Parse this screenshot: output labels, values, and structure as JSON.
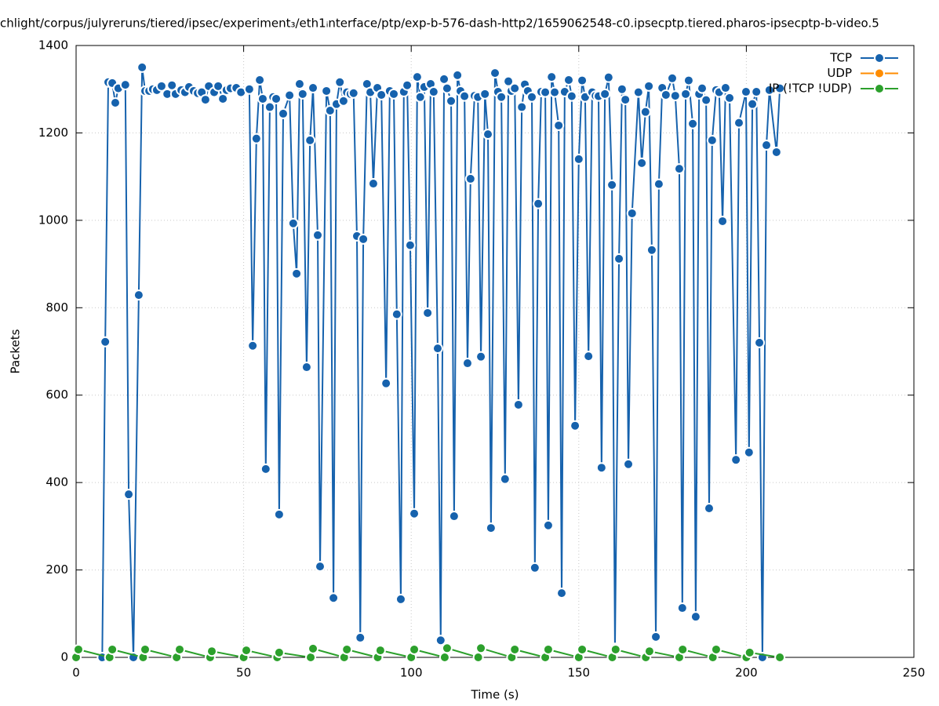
{
  "chart_data": {
    "type": "line",
    "title": "chlight/corpus/julyreruns/tiered/ipsec/experiment₃/eth1ᵢnterface/ptp/exp-b-576-dash-http2/1659062548-c0.ipsecptp.tiered.pharos-ipsecptp-b-video.5",
    "x_label": "Time (s)",
    "y_label": "Packets",
    "xlim": [
      0,
      250
    ],
    "xticks": [
      0,
      50,
      100,
      150,
      200,
      250
    ],
    "ylim": [
      0,
      1400
    ],
    "yticks": [
      0,
      200,
      400,
      600,
      800,
      1000,
      1200,
      1400
    ],
    "grid": true,
    "legend_position": "top-right",
    "series": [
      {
        "name": "TCP",
        "color": "#1662ad",
        "x": [
          7.8,
          8.7,
          9.6,
          10.8,
          11.7,
          12.6,
          14.7,
          15.7,
          17.1,
          18.7,
          19.7,
          20.6,
          21.8,
          22.9,
          24.1,
          25.5,
          27.2,
          28.6,
          29.7,
          31.4,
          32.5,
          33.7,
          35.1,
          36.3,
          37.5,
          38.6,
          39.6,
          41.2,
          42.4,
          43.8,
          44.9,
          46.1,
          47.8,
          49.2,
          51.7,
          52.7,
          53.8,
          54.8,
          55.7,
          56.6,
          57.8,
          58.8,
          59.7,
          60.6,
          61.8,
          63.7,
          64.8,
          65.8,
          66.7,
          67.6,
          68.8,
          69.8,
          70.7,
          72.1,
          72.8,
          74.7,
          75.8,
          76.8,
          77.7,
          78.7,
          79.8,
          80.8,
          81.9,
          82.8,
          83.8,
          84.8,
          85.7,
          86.8,
          87.8,
          88.7,
          89.9,
          91.1,
          92.5,
          93.6,
          94.8,
          95.7,
          96.9,
          97.8,
          98.8,
          99.7,
          100.9,
          101.8,
          102.7,
          103.9,
          104.9,
          105.8,
          106.7,
          107.9,
          108.8,
          109.8,
          110.7,
          111.9,
          112.8,
          113.8,
          114.7,
          115.9,
          116.8,
          117.7,
          118.9,
          119.9,
          120.8,
          122.0,
          122.9,
          123.8,
          125.0,
          125.9,
          126.9,
          128.0,
          129.0,
          129.9,
          130.9,
          132.0,
          133.0,
          133.9,
          134.8,
          136.0,
          136.9,
          137.9,
          138.8,
          140.0,
          140.9,
          141.9,
          142.8,
          144.0,
          144.9,
          145.8,
          147.0,
          147.9,
          148.9,
          150.0,
          151.0,
          151.9,
          152.9,
          154.0,
          155.0,
          155.9,
          156.8,
          157.8,
          158.9,
          159.9,
          160.8,
          162.0,
          162.9,
          163.9,
          164.8,
          165.9,
          167.8,
          168.8,
          169.9,
          170.9,
          171.8,
          173.0,
          173.9,
          174.9,
          176.0,
          177.9,
          178.8,
          180.0,
          180.9,
          181.9,
          182.8,
          184.0,
          184.9,
          185.9,
          186.8,
          188.0,
          188.9,
          189.8,
          191.0,
          191.9,
          192.9,
          193.8,
          195.0,
          196.9,
          197.8,
          199.9,
          200.8,
          201.8,
          203.0,
          203.9,
          204.8,
          206.0,
          206.9,
          209.0,
          210.0
        ],
        "values": [
          0,
          722,
          1316,
          1314,
          1269,
          1302,
          1310,
          373,
          0,
          829,
          1350,
          1296,
          1296,
          1300,
          1298,
          1307,
          1289,
          1309,
          1289,
          1298,
          1293,
          1305,
          1296,
          1291,
          1293,
          1276,
          1307,
          1293,
          1307,
          1278,
          1298,
          1302,
          1303,
          1293,
          1300,
          713,
          1187,
          1321,
          1278,
          431,
          1259,
          1282,
          1278,
          327,
          1244,
          1286,
          993,
          878,
          1312,
          1289,
          664,
          1183,
          1303,
          966,
          208,
          1296,
          1251,
          136,
          1266,
          1316,
          1273,
          1293,
          1289,
          1291,
          964,
          45,
          957,
          1312,
          1293,
          1084,
          1303,
          1287,
          627,
          1296,
          1289,
          785,
          133,
          1294,
          1309,
          943,
          329,
          1328,
          1282,
          1305,
          788,
          1312,
          1294,
          707,
          39,
          1323,
          1302,
          1273,
          323,
          1332,
          1296,
          1284,
          673,
          1095,
          1285,
          1282,
          688,
          1289,
          1197,
          296,
          1337,
          1294,
          1282,
          408,
          1318,
          1296,
          1302,
          578,
          1259,
          1311,
          1296,
          1282,
          205,
          1038,
          1294,
          1293,
          302,
          1328,
          1293,
          1217,
          147,
          1294,
          1321,
          1284,
          530,
          1140,
          1320,
          1282,
          689,
          1293,
          1285,
          1284,
          434,
          1289,
          1327,
          1081,
          21,
          912,
          1300,
          1276,
          442,
          1016,
          1293,
          1131,
          1248,
          1307,
          932,
          47,
          1083,
          1303,
          1287,
          1325,
          1285,
          1118,
          113,
          1289,
          1320,
          1221,
          93,
          1289,
          1302,
          1275,
          341,
          1183,
          1298,
          1293,
          998,
          1303,
          1280,
          452,
          1223,
          1294,
          469,
          1266,
          1294,
          720,
          0,
          1172,
          1298,
          1156,
          1302
        ]
      },
      {
        "name": "UDP",
        "color": "#ff8c00",
        "x": [],
        "values": []
      },
      {
        "name": "IP (!TCP !UDP)",
        "color": "#2ca02c",
        "x": [
          0,
          0.7,
          10,
          10.8,
          20,
          20.6,
          30,
          30.9,
          40,
          40.5,
          50,
          50.8,
          60,
          60.6,
          70,
          70.7,
          80,
          80.8,
          90,
          90.8,
          100,
          100.9,
          110,
          110.7,
          120,
          120.8,
          130,
          130.9,
          140,
          140.9,
          150,
          151,
          160,
          161,
          170,
          171.1,
          180,
          181,
          190,
          191,
          200,
          201,
          210
        ],
        "values": [
          0,
          18,
          0,
          18,
          0,
          18,
          0,
          18,
          0,
          14,
          0,
          16,
          0,
          11,
          0,
          20,
          0,
          18,
          0,
          16,
          0,
          18,
          0,
          21,
          0,
          21,
          0,
          18,
          0,
          18,
          0,
          18,
          0,
          18,
          0,
          14,
          0,
          18,
          0,
          18,
          0,
          11,
          0
        ]
      }
    ]
  }
}
